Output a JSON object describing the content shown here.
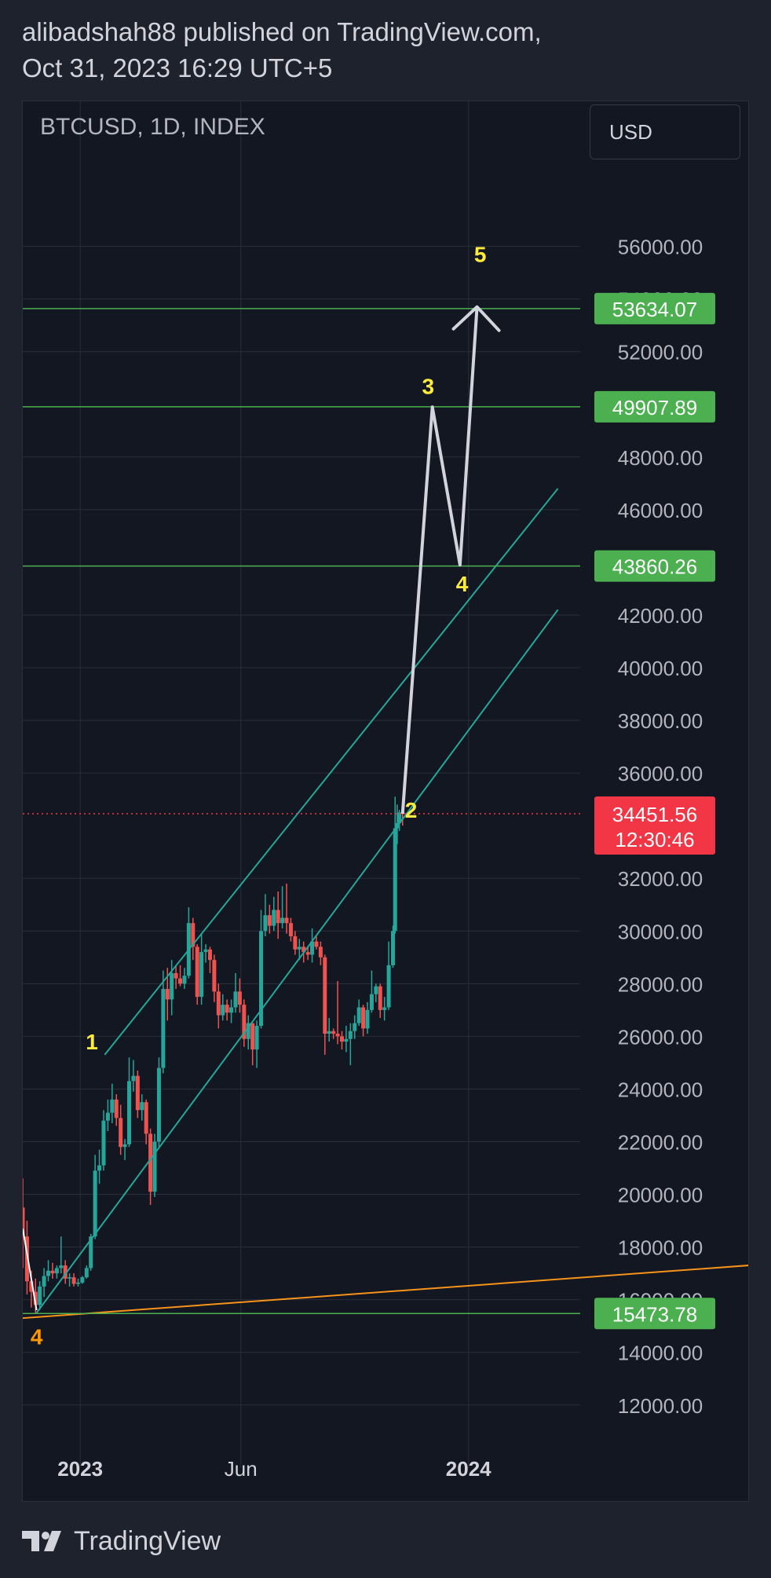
{
  "header": {
    "line1": "alibadshah88 published on TradingView.com,",
    "line2": "Oct 31, 2023 16:29 UTC+5"
  },
  "toolbar": {
    "symbol": "BTCUSD, 1D, INDEX",
    "currency": "USD"
  },
  "footer": {
    "brand": "TradingView",
    "logo_icon": "tradingview-logo-icon"
  },
  "colors": {
    "background": "#131722",
    "grid": "#2a2e39",
    "up": "#26a69a",
    "down": "#ef5350",
    "level_line": "#4caf50",
    "level_badge": "#4caf50",
    "price_badge": "#f23645",
    "channel": "#26a69a",
    "trend": "#f7931a",
    "projection": "#d1d4dc",
    "wave_label": "#ffeb3b",
    "wave_label_orange": "#ff9800"
  },
  "chart_data": {
    "type": "candlestick",
    "symbol": "BTCUSD",
    "interval": "1D",
    "ylim": [
      10800,
      59000
    ],
    "y_ticks": [
      "56000.00",
      "54000.00",
      "52000.00",
      "48000.00",
      "46000.00",
      "42000.00",
      "40000.00",
      "38000.00",
      "36000.00",
      "32000.00",
      "30000.00",
      "28000.00",
      "26000.00",
      "24000.00",
      "22000.00",
      "20000.00",
      "18000.00",
      "16000.00",
      "14000.00",
      "12000.00"
    ],
    "x_ticks": [
      "2023",
      "Jun",
      "2024"
    ],
    "x_ticks_bold": [
      true,
      false,
      true
    ],
    "x_range": [
      "2022-11-08",
      "2024-04-15"
    ],
    "x_tick_dates": [
      "2023-01-01",
      "2023-06-01",
      "2024-01-01"
    ],
    "levels": [
      {
        "price": 53634.07,
        "label": "53634.07"
      },
      {
        "price": 49907.89,
        "label": "49907.89"
      },
      {
        "price": 43860.26,
        "label": "43860.26"
      },
      {
        "price": 15473.78,
        "label": "15473.78"
      }
    ],
    "current_price": {
      "price": 34451.56,
      "label": "34451.56",
      "countdown": "12:30:46"
    },
    "wave_labels": [
      {
        "text": "1",
        "date": "2023-01-12",
        "price": 25500,
        "color": "yellow"
      },
      {
        "text": "2",
        "date": "2023-11-08",
        "price": 34300,
        "color": "yellow"
      },
      {
        "text": "3",
        "date": "2023-11-24",
        "price": 50400,
        "color": "yellow"
      },
      {
        "text": "4",
        "date": "2023-12-26",
        "price": 42900,
        "color": "yellow"
      },
      {
        "text": "5",
        "date": "2024-01-12",
        "price": 55400,
        "color": "yellow"
      },
      {
        "text": "4",
        "date": "2022-11-21",
        "price": 14300,
        "color": "orange"
      }
    ],
    "projection_path": [
      {
        "date": "2023-10-31",
        "price": 34450
      },
      {
        "date": "2023-11-28",
        "price": 49900
      },
      {
        "date": "2023-12-24",
        "price": 43900
      },
      {
        "date": "2024-01-09",
        "price": 53700
      }
    ],
    "channel_upper": [
      {
        "date": "2023-01-24",
        "price": 25300
      },
      {
        "date": "2024-03-25",
        "price": 46800
      }
    ],
    "channel_lower": [
      {
        "date": "2022-11-21",
        "price": 15500
      },
      {
        "date": "2024-03-25",
        "price": 42200
      }
    ],
    "trend_line": [
      {
        "date": "2022-11-08",
        "price": 15300
      },
      {
        "date": "2024-04-15",
        "price": 17400
      }
    ],
    "white_line": [
      {
        "date": "2022-11-08",
        "price": 18700
      },
      {
        "date": "2022-11-21",
        "price": 15600
      }
    ],
    "candles": [
      {
        "date": "2022-11-08",
        "o": 19500,
        "h": 20600,
        "l": 17200,
        "c": 18400
      },
      {
        "date": "2022-11-12",
        "o": 18400,
        "h": 19000,
        "l": 16200,
        "c": 16700
      },
      {
        "date": "2022-11-16",
        "o": 16700,
        "h": 17100,
        "l": 15700,
        "c": 16300
      },
      {
        "date": "2022-11-20",
        "o": 16300,
        "h": 16800,
        "l": 15500,
        "c": 15800
      },
      {
        "date": "2022-11-24",
        "o": 15800,
        "h": 16700,
        "l": 15600,
        "c": 16500
      },
      {
        "date": "2022-11-28",
        "o": 16500,
        "h": 17200,
        "l": 16100,
        "c": 16900
      },
      {
        "date": "2022-12-02",
        "o": 16900,
        "h": 17500,
        "l": 16700,
        "c": 17100
      },
      {
        "date": "2022-12-06",
        "o": 17100,
        "h": 17400,
        "l": 16800,
        "c": 17000
      },
      {
        "date": "2022-12-10",
        "o": 17000,
        "h": 17300,
        "l": 16800,
        "c": 17200
      },
      {
        "date": "2022-12-14",
        "o": 17200,
        "h": 18400,
        "l": 17000,
        "c": 17300
      },
      {
        "date": "2022-12-18",
        "o": 17300,
        "h": 17500,
        "l": 16600,
        "c": 16800
      },
      {
        "date": "2022-12-22",
        "o": 16800,
        "h": 17000,
        "l": 16500,
        "c": 16850
      },
      {
        "date": "2022-12-26",
        "o": 16850,
        "h": 17000,
        "l": 16500,
        "c": 16600
      },
      {
        "date": "2022-12-30",
        "o": 16600,
        "h": 16800,
        "l": 16500,
        "c": 16650
      },
      {
        "date": "2023-01-03",
        "o": 16650,
        "h": 16900,
        "l": 16600,
        "c": 16850
      },
      {
        "date": "2023-01-07",
        "o": 16850,
        "h": 17300,
        "l": 16800,
        "c": 17200
      },
      {
        "date": "2023-01-11",
        "o": 17200,
        "h": 18500,
        "l": 17100,
        "c": 18400
      },
      {
        "date": "2023-01-15",
        "o": 18400,
        "h": 21500,
        "l": 18300,
        "c": 20900
      },
      {
        "date": "2023-01-19",
        "o": 20900,
        "h": 21700,
        "l": 20400,
        "c": 21100
      },
      {
        "date": "2023-01-23",
        "o": 21100,
        "h": 23200,
        "l": 20900,
        "c": 22800
      },
      {
        "date": "2023-01-27",
        "o": 22800,
        "h": 23600,
        "l": 22400,
        "c": 23100
      },
      {
        "date": "2023-01-31",
        "o": 23100,
        "h": 24200,
        "l": 22700,
        "c": 23600
      },
      {
        "date": "2023-02-04",
        "o": 23600,
        "h": 23800,
        "l": 22600,
        "c": 22900
      },
      {
        "date": "2023-02-08",
        "o": 22900,
        "h": 23400,
        "l": 21500,
        "c": 21800
      },
      {
        "date": "2023-02-12",
        "o": 21800,
        "h": 22100,
        "l": 21300,
        "c": 21900
      },
      {
        "date": "2023-02-16",
        "o": 21900,
        "h": 25200,
        "l": 21800,
        "c": 24300
      },
      {
        "date": "2023-02-20",
        "o": 24300,
        "h": 25100,
        "l": 23900,
        "c": 24500
      },
      {
        "date": "2023-02-24",
        "o": 24500,
        "h": 24700,
        "l": 22900,
        "c": 23200
      },
      {
        "date": "2023-02-28",
        "o": 23200,
        "h": 23800,
        "l": 22800,
        "c": 23500
      },
      {
        "date": "2023-03-04",
        "o": 23500,
        "h": 23600,
        "l": 21900,
        "c": 22300
      },
      {
        "date": "2023-03-08",
        "o": 22300,
        "h": 22500,
        "l": 19600,
        "c": 20100
      },
      {
        "date": "2023-03-12",
        "o": 20100,
        "h": 22300,
        "l": 19900,
        "c": 22000
      },
      {
        "date": "2023-03-16",
        "o": 22000,
        "h": 25200,
        "l": 21800,
        "c": 24800
      },
      {
        "date": "2023-03-20",
        "o": 24800,
        "h": 28500,
        "l": 24600,
        "c": 27800
      },
      {
        "date": "2023-03-24",
        "o": 27800,
        "h": 28600,
        "l": 26600,
        "c": 27400
      },
      {
        "date": "2023-03-28",
        "o": 27400,
        "h": 28900,
        "l": 26800,
        "c": 28400
      },
      {
        "date": "2023-04-01",
        "o": 28400,
        "h": 28700,
        "l": 27800,
        "c": 28200
      },
      {
        "date": "2023-04-05",
        "o": 28200,
        "h": 28700,
        "l": 27900,
        "c": 28000
      },
      {
        "date": "2023-04-09",
        "o": 28000,
        "h": 28600,
        "l": 27800,
        "c": 28300
      },
      {
        "date": "2023-04-13",
        "o": 28300,
        "h": 30900,
        "l": 28200,
        "c": 30300
      },
      {
        "date": "2023-04-17",
        "o": 30300,
        "h": 30500,
        "l": 28900,
        "c": 29400
      },
      {
        "date": "2023-04-21",
        "o": 29400,
        "h": 29500,
        "l": 27200,
        "c": 27500
      },
      {
        "date": "2023-04-25",
        "o": 27500,
        "h": 29900,
        "l": 27200,
        "c": 29200
      },
      {
        "date": "2023-04-29",
        "o": 29200,
        "h": 29500,
        "l": 28800,
        "c": 29300
      },
      {
        "date": "2023-05-03",
        "o": 29300,
        "h": 29400,
        "l": 28400,
        "c": 28900
      },
      {
        "date": "2023-05-07",
        "o": 28900,
        "h": 29100,
        "l": 27300,
        "c": 27700
      },
      {
        "date": "2023-05-11",
        "o": 27700,
        "h": 28000,
        "l": 26300,
        "c": 26800
      },
      {
        "date": "2023-05-15",
        "o": 26800,
        "h": 27600,
        "l": 26600,
        "c": 27200
      },
      {
        "date": "2023-05-19",
        "o": 27200,
        "h": 27400,
        "l": 26600,
        "c": 26900
      },
      {
        "date": "2023-05-23",
        "o": 26900,
        "h": 27400,
        "l": 26500,
        "c": 27100
      },
      {
        "date": "2023-05-27",
        "o": 27100,
        "h": 28400,
        "l": 26900,
        "c": 27700
      },
      {
        "date": "2023-05-31",
        "o": 27700,
        "h": 28200,
        "l": 26900,
        "c": 27200
      },
      {
        "date": "2023-06-04",
        "o": 27200,
        "h": 27400,
        "l": 25600,
        "c": 25900
      },
      {
        "date": "2023-06-08",
        "o": 25900,
        "h": 26800,
        "l": 25500,
        "c": 26500
      },
      {
        "date": "2023-06-12",
        "o": 26500,
        "h": 26500,
        "l": 24900,
        "c": 25500
      },
      {
        "date": "2023-06-16",
        "o": 25500,
        "h": 26600,
        "l": 24800,
        "c": 26400
      },
      {
        "date": "2023-06-20",
        "o": 26400,
        "h": 30800,
        "l": 26300,
        "c": 30000
      },
      {
        "date": "2023-06-24",
        "o": 30000,
        "h": 31400,
        "l": 29800,
        "c": 30600
      },
      {
        "date": "2023-06-28",
        "o": 30600,
        "h": 31000,
        "l": 29900,
        "c": 30200
      },
      {
        "date": "2023-07-02",
        "o": 30200,
        "h": 31300,
        "l": 30000,
        "c": 30800
      },
      {
        "date": "2023-07-06",
        "o": 30800,
        "h": 31500,
        "l": 29700,
        "c": 30300
      },
      {
        "date": "2023-07-10",
        "o": 30300,
        "h": 31700,
        "l": 30100,
        "c": 30500
      },
      {
        "date": "2023-07-14",
        "o": 30500,
        "h": 31800,
        "l": 29900,
        "c": 30300
      },
      {
        "date": "2023-07-18",
        "o": 30300,
        "h": 30500,
        "l": 29600,
        "c": 29800
      },
      {
        "date": "2023-07-22",
        "o": 29800,
        "h": 30000,
        "l": 29100,
        "c": 29300
      },
      {
        "date": "2023-07-26",
        "o": 29300,
        "h": 29700,
        "l": 28900,
        "c": 29400
      },
      {
        "date": "2023-07-30",
        "o": 29400,
        "h": 29600,
        "l": 28800,
        "c": 29200
      },
      {
        "date": "2023-08-03",
        "o": 29200,
        "h": 29400,
        "l": 28900,
        "c": 29100
      },
      {
        "date": "2023-08-07",
        "o": 29100,
        "h": 30100,
        "l": 28800,
        "c": 29600
      },
      {
        "date": "2023-08-11",
        "o": 29600,
        "h": 29800,
        "l": 29300,
        "c": 29400
      },
      {
        "date": "2023-08-15",
        "o": 29400,
        "h": 29600,
        "l": 28700,
        "c": 29000
      },
      {
        "date": "2023-08-19",
        "o": 29000,
        "h": 29100,
        "l": 25300,
        "c": 26100
      },
      {
        "date": "2023-08-23",
        "o": 26100,
        "h": 26700,
        "l": 25800,
        "c": 26200
      },
      {
        "date": "2023-08-27",
        "o": 26200,
        "h": 26300,
        "l": 25900,
        "c": 26100
      },
      {
        "date": "2023-08-31",
        "o": 26100,
        "h": 28100,
        "l": 25700,
        "c": 26000
      },
      {
        "date": "2023-09-04",
        "o": 26000,
        "h": 26200,
        "l": 25500,
        "c": 25800
      },
      {
        "date": "2023-09-08",
        "o": 25800,
        "h": 26400,
        "l": 25400,
        "c": 25900
      },
      {
        "date": "2023-09-12",
        "o": 25900,
        "h": 26500,
        "l": 24900,
        "c": 26200
      },
      {
        "date": "2023-09-16",
        "o": 26200,
        "h": 26800,
        "l": 25900,
        "c": 26500
      },
      {
        "date": "2023-09-20",
        "o": 26500,
        "h": 27400,
        "l": 26400,
        "c": 27100
      },
      {
        "date": "2023-09-24",
        "o": 27100,
        "h": 27200,
        "l": 26000,
        "c": 26300
      },
      {
        "date": "2023-09-28",
        "o": 26300,
        "h": 27300,
        "l": 26100,
        "c": 27000
      },
      {
        "date": "2023-10-02",
        "o": 27000,
        "h": 28500,
        "l": 26900,
        "c": 27600
      },
      {
        "date": "2023-10-06",
        "o": 27600,
        "h": 28000,
        "l": 27300,
        "c": 27900
      },
      {
        "date": "2023-10-10",
        "o": 27900,
        "h": 28000,
        "l": 26700,
        "c": 27000
      },
      {
        "date": "2023-10-14",
        "o": 27000,
        "h": 27500,
        "l": 26600,
        "c": 27100
      },
      {
        "date": "2023-10-18",
        "o": 27100,
        "h": 29600,
        "l": 27000,
        "c": 28700
      },
      {
        "date": "2023-10-22",
        "o": 28700,
        "h": 30200,
        "l": 28600,
        "c": 30000
      },
      {
        "date": "2023-10-24",
        "o": 30000,
        "h": 35100,
        "l": 29900,
        "c": 33900
      },
      {
        "date": "2023-10-26",
        "o": 33900,
        "h": 34800,
        "l": 33300,
        "c": 34100
      },
      {
        "date": "2023-10-28",
        "o": 34100,
        "h": 34600,
        "l": 33800,
        "c": 34500
      },
      {
        "date": "2023-10-31",
        "o": 34500,
        "h": 34800,
        "l": 34000,
        "c": 34450
      }
    ]
  }
}
